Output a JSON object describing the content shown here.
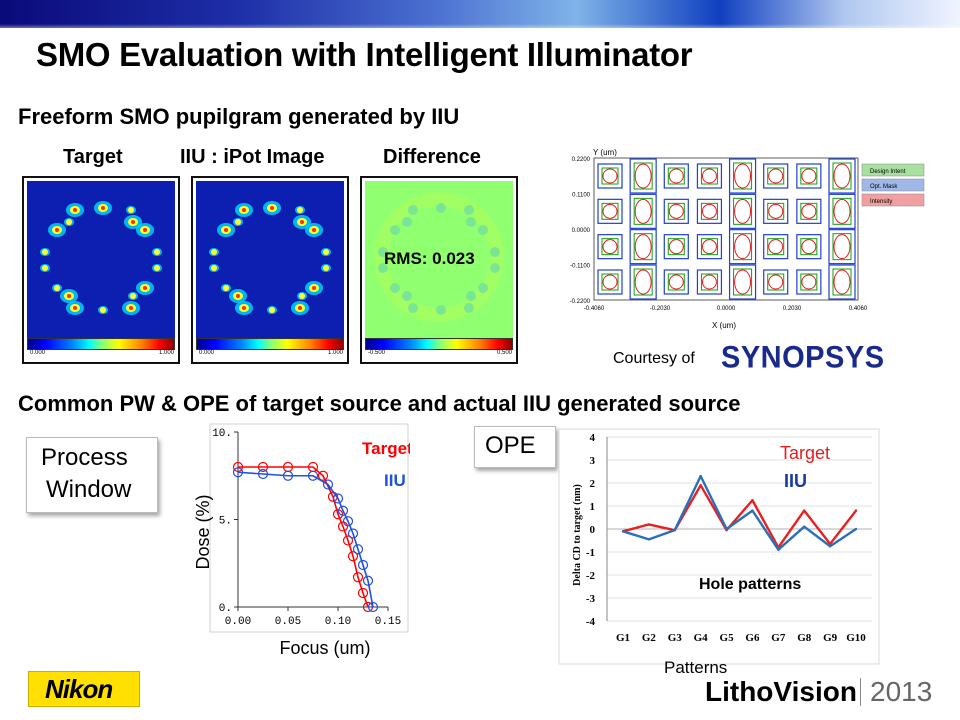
{
  "title": "SMO Evaluation with Intelligent Illuminator",
  "section1": {
    "heading": "Freeform SMO pupilgram generated by IIU",
    "panels": [
      {
        "label": "Target",
        "color": "#ff0000",
        "cb_min": "0.000",
        "cb_max": "1.000"
      },
      {
        "label": "IIU : iPot Image",
        "color": "#2040c0",
        "cb_min": "0.000",
        "cb_max": "1.000"
      },
      {
        "label": "Difference",
        "color": "#000000",
        "cb_min": "-0.500",
        "cb_max": "0.500",
        "annotation": "RMS: 0.023"
      }
    ],
    "mask": {
      "y_axis_label": "Y (um)",
      "x_axis_label": "X (um)",
      "y_ticks": [
        "0.2200",
        "0.1100",
        "0.0000",
        "-0.1100",
        "-0.2200"
      ],
      "x_ticks": [
        "-0.4060",
        "-0.2030",
        "0.0000",
        "0.2030",
        "0.4060"
      ],
      "legend": [
        {
          "label": "Design Intent",
          "color": "#a8e0a0"
        },
        {
          "label": "Opt. Mask",
          "color": "#a0b8e8"
        },
        {
          "label": "Intensity",
          "color": "#f0a0a0"
        }
      ]
    },
    "courtesy": "Courtesy of",
    "courtesy_logo": "SYNOPSYS"
  },
  "section2": {
    "heading": "Common PW & OPE of target source and actual IIU generated source",
    "process_window_label": [
      "Process",
      "Window"
    ],
    "ope_label": "OPE"
  },
  "chart_data": [
    {
      "type": "line",
      "xlabel": "Focus (um)",
      "ylabel": "Dose (%)",
      "xlim": [
        0.0,
        0.15
      ],
      "ylim": [
        0,
        10
      ],
      "x_ticks": [
        "0.00",
        "0.05",
        "0.10",
        "0.15"
      ],
      "y_ticks": [
        "0.",
        "5.",
        "10."
      ],
      "legend_position": "top-right",
      "series": [
        {
          "name": "Target",
          "color": "#ff0000",
          "x": [
            0.0,
            0.025,
            0.05,
            0.075,
            0.085,
            0.095,
            0.1,
            0.105,
            0.11,
            0.115,
            0.12,
            0.125,
            0.13
          ],
          "y": [
            8.0,
            8.0,
            8.0,
            8.0,
            7.5,
            6.3,
            5.3,
            4.6,
            3.8,
            2.9,
            1.7,
            0.8,
            0.0
          ]
        },
        {
          "name": "IIU",
          "color": "#2050e0",
          "x": [
            0.0,
            0.025,
            0.05,
            0.075,
            0.09,
            0.1,
            0.105,
            0.11,
            0.115,
            0.12,
            0.125,
            0.13,
            0.135
          ],
          "y": [
            7.7,
            7.6,
            7.5,
            7.5,
            7.0,
            6.2,
            5.5,
            4.9,
            4.2,
            3.3,
            2.4,
            1.5,
            0.0
          ]
        }
      ]
    },
    {
      "type": "line",
      "xlabel": "Patterns",
      "ylabel": "Delta CD to target (nm)",
      "ylim": [
        -4,
        4
      ],
      "y_ticks": [
        "4",
        "3",
        "2",
        "1",
        "0",
        "-1",
        "-2",
        "-3",
        "-4"
      ],
      "categories": [
        "G1",
        "G2",
        "G3",
        "G4",
        "G5",
        "G6",
        "G7",
        "G8",
        "G9",
        "G10"
      ],
      "annotation": "Hole patterns",
      "legend_position": "top-right",
      "series": [
        {
          "name": "Target",
          "color": "#e82020",
          "values": [
            -0.1,
            0.2,
            -0.05,
            1.9,
            -0.05,
            1.25,
            -0.8,
            0.8,
            -0.65,
            0.8
          ]
        },
        {
          "name": "IIU",
          "color": "#2a70b8",
          "values": [
            -0.1,
            -0.45,
            -0.05,
            2.3,
            0.0,
            0.8,
            -0.9,
            0.1,
            -0.75,
            0.0
          ]
        }
      ]
    }
  ],
  "footer": {
    "brand": "Nikon",
    "event_a": "Litho",
    "event_b": "Vision",
    "year": "2013"
  }
}
